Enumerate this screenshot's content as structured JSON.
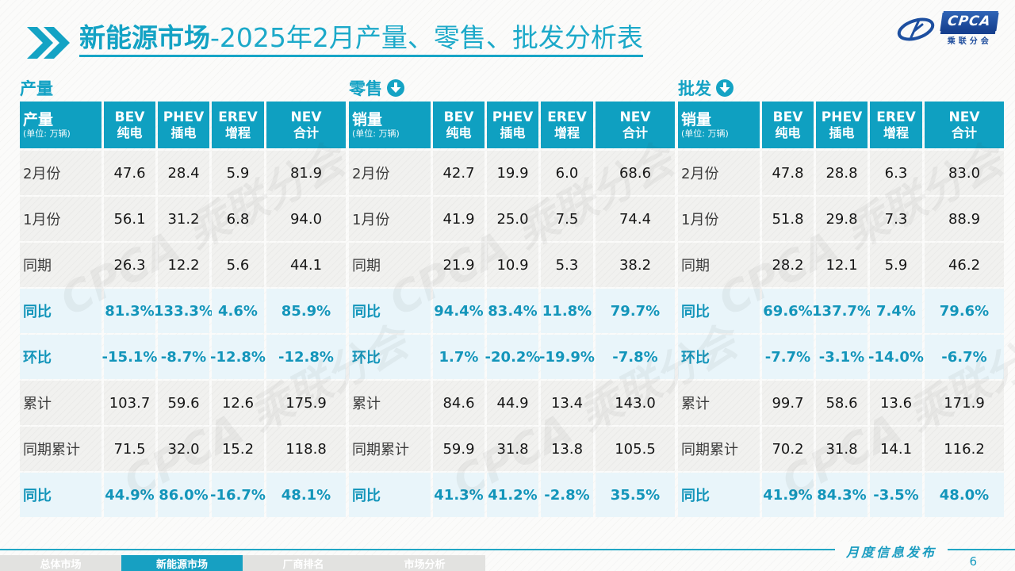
{
  "title": {
    "highlight": "新能源市场",
    "rest": "-2025年2月产量、零售、批发分析表"
  },
  "logo": {
    "name": "CPCA",
    "subtext": "乘联分会"
  },
  "colors": {
    "accent": "#0FA0C1",
    "highlight_row_bg": "#E9F5FA",
    "highlight_text": "#1395BA",
    "normal_row_bg": "#F1F1EF"
  },
  "watermark_text": "CPCA 乘联分会",
  "tables": [
    {
      "label": "产量",
      "arrow": false,
      "corner": {
        "title": "产量",
        "unit": "(单位: 万辆)"
      },
      "columns": [
        {
          "en": "BEV",
          "zh": "纯电"
        },
        {
          "en": "PHEV",
          "zh": "插电"
        },
        {
          "en": "EREV",
          "zh": "增程"
        },
        {
          "en": "NEV",
          "zh": "合计"
        }
      ],
      "rows": [
        {
          "label": "2月份",
          "type": "normal",
          "values": [
            "47.6",
            "28.4",
            "5.9",
            "81.9"
          ]
        },
        {
          "label": "1月份",
          "type": "normal",
          "values": [
            "56.1",
            "31.2",
            "6.8",
            "94.0"
          ]
        },
        {
          "label": "同期",
          "type": "normal",
          "values": [
            "26.3",
            "12.2",
            "5.6",
            "44.1"
          ]
        },
        {
          "label": "同比",
          "type": "highlight",
          "values": [
            "81.3%",
            "133.3%",
            "4.6%",
            "85.9%"
          ]
        },
        {
          "label": "环比",
          "type": "highlight",
          "values": [
            "-15.1%",
            "-8.7%",
            "-12.8%",
            "-12.8%"
          ]
        },
        {
          "label": "累计",
          "type": "normal",
          "values": [
            "103.7",
            "59.6",
            "12.6",
            "175.9"
          ]
        },
        {
          "label": "同期累计",
          "type": "normal",
          "values": [
            "71.5",
            "32.0",
            "15.2",
            "118.8"
          ]
        },
        {
          "label": "同比",
          "type": "highlight",
          "values": [
            "44.9%",
            "86.0%",
            "-16.7%",
            "48.1%"
          ]
        }
      ]
    },
    {
      "label": "零售",
      "arrow": true,
      "corner": {
        "title": "销量",
        "unit": "(单位: 万辆)"
      },
      "columns": [
        {
          "en": "BEV",
          "zh": "纯电"
        },
        {
          "en": "PHEV",
          "zh": "插电"
        },
        {
          "en": "EREV",
          "zh": "增程"
        },
        {
          "en": "NEV",
          "zh": "合计"
        }
      ],
      "rows": [
        {
          "label": "2月份",
          "type": "normal",
          "values": [
            "42.7",
            "19.9",
            "6.0",
            "68.6"
          ]
        },
        {
          "label": "1月份",
          "type": "normal",
          "values": [
            "41.9",
            "25.0",
            "7.5",
            "74.4"
          ]
        },
        {
          "label": "同期",
          "type": "normal",
          "values": [
            "21.9",
            "10.9",
            "5.3",
            "38.2"
          ]
        },
        {
          "label": "同比",
          "type": "highlight",
          "values": [
            "94.4%",
            "83.4%",
            "11.8%",
            "79.7%"
          ]
        },
        {
          "label": "环比",
          "type": "highlight",
          "values": [
            "1.7%",
            "-20.2%",
            "-19.9%",
            "-7.8%"
          ]
        },
        {
          "label": "累计",
          "type": "normal",
          "values": [
            "84.6",
            "44.9",
            "13.4",
            "143.0"
          ]
        },
        {
          "label": "同期累计",
          "type": "normal",
          "values": [
            "59.9",
            "31.8",
            "13.8",
            "105.5"
          ]
        },
        {
          "label": "同比",
          "type": "highlight",
          "values": [
            "41.3%",
            "41.2%",
            "-2.8%",
            "35.5%"
          ]
        }
      ]
    },
    {
      "label": "批发",
      "arrow": true,
      "corner": {
        "title": "销量",
        "unit": "(单位: 万辆)"
      },
      "columns": [
        {
          "en": "BEV",
          "zh": "纯电"
        },
        {
          "en": "PHEV",
          "zh": "插电"
        },
        {
          "en": "EREV",
          "zh": "增程"
        },
        {
          "en": "NEV",
          "zh": "合计"
        }
      ],
      "rows": [
        {
          "label": "2月份",
          "type": "normal",
          "values": [
            "47.8",
            "28.8",
            "6.3",
            "83.0"
          ]
        },
        {
          "label": "1月份",
          "type": "normal",
          "values": [
            "51.8",
            "29.8",
            "7.3",
            "88.9"
          ]
        },
        {
          "label": "同期",
          "type": "normal",
          "values": [
            "28.2",
            "12.1",
            "5.9",
            "46.2"
          ]
        },
        {
          "label": "同比",
          "type": "highlight",
          "values": [
            "69.6%",
            "137.7%",
            "7.4%",
            "79.6%"
          ]
        },
        {
          "label": "环比",
          "type": "highlight",
          "values": [
            "-7.7%",
            "-3.1%",
            "-14.0%",
            "-6.7%"
          ]
        },
        {
          "label": "累计",
          "type": "normal",
          "values": [
            "99.7",
            "58.6",
            "13.6",
            "171.9"
          ]
        },
        {
          "label": "同期累计",
          "type": "normal",
          "values": [
            "70.2",
            "31.8",
            "14.1",
            "116.2"
          ]
        },
        {
          "label": "同比",
          "type": "highlight",
          "values": [
            "41.9%",
            "84.3%",
            "-3.5%",
            "48.0%"
          ]
        }
      ]
    }
  ],
  "footer": {
    "tabs": [
      {
        "label": "总体市场",
        "active": false
      },
      {
        "label": "新能源市场",
        "active": true
      },
      {
        "label": "厂商排名",
        "active": false
      },
      {
        "label": "市场分析",
        "active": false
      }
    ],
    "note": "月度信息发布",
    "page": "6"
  }
}
